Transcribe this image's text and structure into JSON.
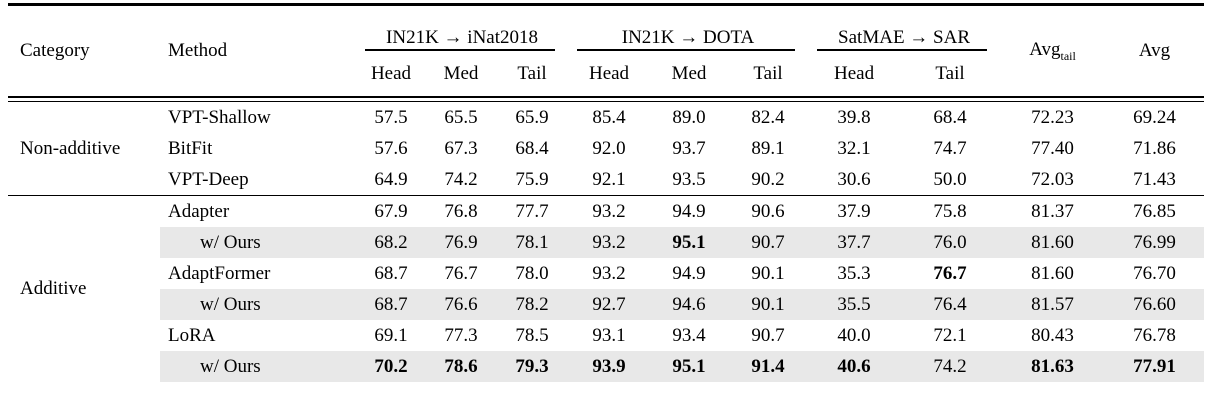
{
  "table": {
    "header": {
      "category": "Category",
      "method": "Method",
      "groups": [
        {
          "label": "IN21K → iNat2018",
          "subcols": [
            "Head",
            "Med",
            "Tail"
          ]
        },
        {
          "label": "IN21K → DOTA",
          "subcols": [
            "Head",
            "Med",
            "Tail"
          ]
        },
        {
          "label": "SatMAE → SAR",
          "subcols": [
            "Head",
            "Tail"
          ]
        }
      ],
      "avg_tail": {
        "base": "Avg",
        "subscript": "tail"
      },
      "avg": "Avg"
    },
    "sections": [
      {
        "category": "Non-additive",
        "rows": [
          {
            "method": "VPT-Shallow",
            "indent": false,
            "shaded": false,
            "values": [
              "57.5",
              "65.5",
              "65.9",
              "85.4",
              "89.0",
              "82.4",
              "39.8",
              "68.4",
              "72.23",
              "69.24"
            ],
            "bold_indices": []
          },
          {
            "method": "BitFit",
            "indent": false,
            "shaded": false,
            "values": [
              "57.6",
              "67.3",
              "68.4",
              "92.0",
              "93.7",
              "89.1",
              "32.1",
              "74.7",
              "77.40",
              "71.86"
            ],
            "bold_indices": []
          },
          {
            "method": "VPT-Deep",
            "indent": false,
            "shaded": false,
            "values": [
              "64.9",
              "74.2",
              "75.9",
              "92.1",
              "93.5",
              "90.2",
              "30.6",
              "50.0",
              "72.03",
              "71.43"
            ],
            "bold_indices": []
          }
        ]
      },
      {
        "category": "Additive",
        "rows": [
          {
            "method": "Adapter",
            "indent": false,
            "shaded": false,
            "values": [
              "67.9",
              "76.8",
              "77.7",
              "93.2",
              "94.9",
              "90.6",
              "37.9",
              "75.8",
              "81.37",
              "76.85"
            ],
            "bold_indices": []
          },
          {
            "method": "w/ Ours",
            "indent": true,
            "shaded": true,
            "values": [
              "68.2",
              "76.9",
              "78.1",
              "93.2",
              "95.1",
              "90.7",
              "37.7",
              "76.0",
              "81.60",
              "76.99"
            ],
            "bold_indices": [
              4
            ]
          },
          {
            "method": "AdaptFormer",
            "indent": false,
            "shaded": false,
            "values": [
              "68.7",
              "76.7",
              "78.0",
              "93.2",
              "94.9",
              "90.1",
              "35.3",
              "76.7",
              "81.60",
              "76.70"
            ],
            "bold_indices": [
              7
            ]
          },
          {
            "method": "w/ Ours",
            "indent": true,
            "shaded": true,
            "values": [
              "68.7",
              "76.6",
              "78.2",
              "92.7",
              "94.6",
              "90.1",
              "35.5",
              "76.4",
              "81.57",
              "76.60"
            ],
            "bold_indices": []
          },
          {
            "method": "LoRA",
            "indent": false,
            "shaded": false,
            "values": [
              "69.1",
              "77.3",
              "78.5",
              "93.1",
              "93.4",
              "90.7",
              "40.0",
              "72.1",
              "80.43",
              "76.78"
            ],
            "bold_indices": []
          },
          {
            "method": "w/ Ours",
            "indent": true,
            "shaded": true,
            "values": [
              "70.2",
              "78.6",
              "79.3",
              "93.9",
              "95.1",
              "91.4",
              "40.6",
              "74.2",
              "81.63",
              "77.91"
            ],
            "bold_indices": [
              0,
              1,
              2,
              3,
              4,
              5,
              6,
              8,
              9
            ]
          }
        ]
      }
    ],
    "colors": {
      "shaded_row": "#e8e8e8",
      "rule": "#000000",
      "text": "#000000"
    }
  }
}
